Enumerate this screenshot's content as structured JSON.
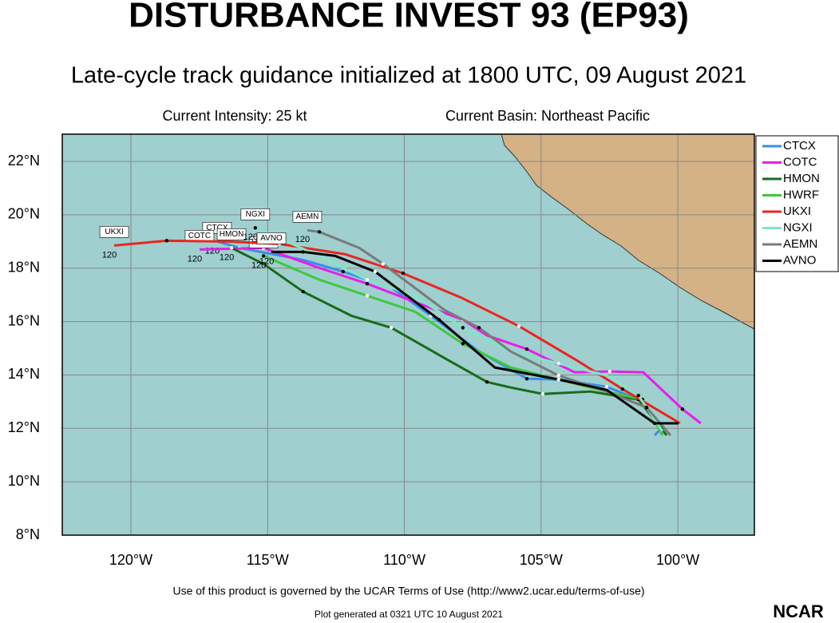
{
  "chart_data": {
    "type": "line",
    "title": "DISTURBANCE INVEST 93 (EP93)",
    "subtitle": "Late-cycle track guidance initialized at 1800 UTC, 09 August 2021",
    "annotations": [
      "Current Intensity: 25 kt",
      "Current Basin: Northeast Pacific"
    ],
    "footer": "Use of this product is governed by the UCAR Terms of Use (http://www2.ucar.edu/terms-of-use)",
    "generated": "Plot generated at 0321 UTC  10 August 2021",
    "logo": "NCAR",
    "xlim": [
      -122.51,
      -97.2
    ],
    "ylim": [
      8,
      23.02
    ],
    "xticks": [
      {
        "value": -120,
        "label": "120°W"
      },
      {
        "value": -115,
        "label": "115°W"
      },
      {
        "value": -110,
        "label": "110°W"
      },
      {
        "value": -105,
        "label": "105°W"
      },
      {
        "value": -100,
        "label": "100°W"
      }
    ],
    "yticks": [
      {
        "value": 8,
        "label": "8°N"
      },
      {
        "value": 10,
        "label": "10°N"
      },
      {
        "value": 12,
        "label": "12°N"
      },
      {
        "value": 14,
        "label": "14°N"
      },
      {
        "value": 16,
        "label": "16°N"
      },
      {
        "value": 18,
        "label": "18°N"
      },
      {
        "value": 20,
        "label": "20°N"
      },
      {
        "value": 22,
        "label": "22°N"
      }
    ],
    "grid": true,
    "legend": "right",
    "series": [
      {
        "name": "CTCX",
        "color": "#3a8ee6",
        "end_label": "120",
        "x": [
          -100.85,
          -100.56,
          -101.44,
          -102.6,
          -104.36,
          -105.52,
          -107.27,
          -109.03,
          -110.48,
          -112.24,
          -113.7,
          -116.03,
          -116.85
        ],
        "values": [
          11.74,
          12.04,
          13.08,
          13.56,
          13.83,
          13.86,
          14.88,
          16.22,
          17.27,
          17.87,
          18.31,
          18.76,
          19.0
        ]
      },
      {
        "name": "COTC",
        "color": "#e81ee8",
        "end_label": "120",
        "x": [
          -99.16,
          -99.83,
          -101.26,
          -102.49,
          -103.77,
          -105.52,
          -106.98,
          -107.86,
          -109.61,
          -111.36,
          -113.11,
          -115.15,
          -117.49
        ],
        "values": [
          12.19,
          12.72,
          14.1,
          14.13,
          14.1,
          14.97,
          15.48,
          16.07,
          16.73,
          17.42,
          18.01,
          18.76,
          18.7
        ]
      },
      {
        "name": "HMON",
        "color": "#1a6b1a",
        "end_label": "120",
        "x": [
          -100.41,
          -101.44,
          -103.19,
          -104.94,
          -106.11,
          -106.98,
          -108.44,
          -110.48,
          -111.94,
          -113.7,
          -115.15,
          -116.32
        ],
        "values": [
          11.74,
          13.08,
          13.38,
          13.29,
          13.53,
          13.74,
          14.58,
          15.77,
          16.22,
          17.12,
          18.16,
          18.76
        ]
      },
      {
        "name": "HWRF",
        "color": "#3ec83e",
        "end_label": "120",
        "x": [
          -100.56,
          -101.29,
          -102.6,
          -104.36,
          -106.11,
          -107.86,
          -109.61,
          -111.36,
          -113.11,
          -115.15
        ],
        "values": [
          11.74,
          13.08,
          13.38,
          13.83,
          14.28,
          15.17,
          16.37,
          16.97,
          17.57,
          18.46
        ]
      },
      {
        "name": "UKXI",
        "color": "#e8261e",
        "end_label": "120",
        "x": [
          -99.92,
          -102.02,
          -103.65,
          -105.81,
          -107.95,
          -110.05,
          -112.15,
          -114.57,
          -116.47,
          -118.69,
          -120.61
        ],
        "values": [
          12.19,
          13.47,
          14.52,
          15.83,
          16.91,
          17.81,
          18.52,
          18.91,
          19.0,
          19.03,
          18.85
        ]
      },
      {
        "name": "NGXI",
        "color": "#7fe6c8",
        "end_label": "120",
        "x": [
          -100.56,
          -101.44,
          -102.6,
          -104.36,
          -106.11,
          -107.86,
          -109.61,
          -111.36,
          -113.11,
          -115.45
        ],
        "values": [
          11.89,
          13.23,
          13.98,
          14.43,
          14.88,
          15.77,
          16.97,
          17.57,
          18.46,
          19.51
        ]
      },
      {
        "name": "AEMN",
        "color": "#7a7a7a",
        "end_label": "120",
        "x": [
          -100.27,
          -101.14,
          -102.6,
          -104.36,
          -106.11,
          -107.27,
          -108.53,
          -110.78,
          -111.65,
          -113.11,
          -113.55
        ],
        "values": [
          11.74,
          12.78,
          13.38,
          13.98,
          14.88,
          15.77,
          16.43,
          18.16,
          18.76,
          19.36,
          19.42
        ]
      },
      {
        "name": "AVNO",
        "color": "#000000",
        "end_label": "120",
        "x": [
          -99.98,
          -100.85,
          -102.6,
          -104.36,
          -106.69,
          -108.73,
          -109.9,
          -111.07,
          -112.53,
          -113.7,
          -114.86
        ],
        "values": [
          12.19,
          12.19,
          13.44,
          13.83,
          14.28,
          16.07,
          16.97,
          17.87,
          18.46,
          18.61,
          18.61
        ]
      }
    ]
  }
}
